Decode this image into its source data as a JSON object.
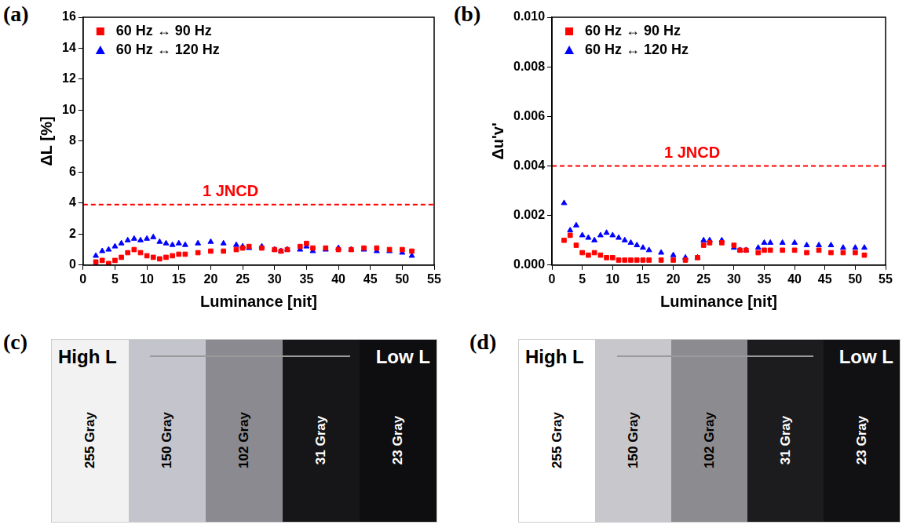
{
  "chart_data": [
    {
      "panel": "(a)",
      "type": "scatter",
      "x_label": "Luminance [nit]",
      "y_label": "ΔL [%]",
      "x": [
        2,
        3,
        4,
        5,
        6,
        7,
        8,
        9,
        10,
        11,
        12,
        13,
        14,
        15,
        16,
        18,
        20,
        22,
        24,
        25,
        26,
        28,
        30,
        31,
        32,
        34,
        35,
        36,
        38,
        40,
        42,
        44,
        46,
        48,
        50,
        51.5
      ],
      "series": [
        {
          "name": "60 Hz ↔ 90 Hz",
          "color": "#ff0000",
          "marker": "square",
          "values": [
            0.2,
            0.3,
            0.1,
            0.3,
            0.5,
            0.8,
            1.0,
            0.8,
            0.6,
            0.5,
            0.4,
            0.5,
            0.6,
            0.7,
            0.7,
            0.8,
            0.9,
            0.9,
            1.0,
            1.1,
            1.2,
            1.1,
            1.0,
            0.9,
            1.0,
            1.2,
            1.4,
            1.1,
            1.1,
            1.0,
            1.0,
            1.1,
            1.1,
            1.0,
            1.0,
            0.9
          ]
        },
        {
          "name": "60 Hz ↔ 120 Hz",
          "color": "#0000ff",
          "marker": "triangle",
          "values": [
            0.6,
            0.9,
            1.0,
            1.2,
            1.4,
            1.6,
            1.7,
            1.6,
            1.7,
            1.8,
            1.5,
            1.4,
            1.3,
            1.4,
            1.3,
            1.4,
            1.5,
            1.4,
            1.3,
            1.2,
            1.1,
            1.2,
            1.0,
            0.9,
            1.0,
            1.0,
            1.2,
            0.9,
            1.0,
            1.1,
            1.0,
            1.0,
            0.9,
            0.9,
            0.8,
            0.6
          ]
        }
      ],
      "xlim": [
        0,
        55
      ],
      "xticks": [
        0,
        5,
        10,
        15,
        20,
        25,
        30,
        35,
        40,
        45,
        50,
        55
      ],
      "ylim": [
        0,
        16
      ],
      "yticks": [
        0,
        2,
        4,
        6,
        8,
        10,
        12,
        14,
        16
      ],
      "grid": false,
      "legend": "upper left",
      "annotations": [
        {
          "y": 3.9,
          "text": "1 JNCD",
          "color": "#ff0000",
          "line_style": "dashed"
        }
      ]
    },
    {
      "panel": "(b)",
      "type": "scatter",
      "x_label": "Luminance [nit]",
      "y_label": "Δu'v'",
      "x": [
        2,
        3,
        4,
        5,
        6,
        7,
        8,
        9,
        10,
        11,
        12,
        13,
        14,
        15,
        16,
        18,
        20,
        22,
        24,
        25,
        26,
        28,
        30,
        31,
        32,
        34,
        35,
        36,
        38,
        40,
        42,
        44,
        46,
        48,
        50,
        51.5
      ],
      "series": [
        {
          "name": "60 Hz ↔ 90 Hz",
          "color": "#ff0000",
          "marker": "square",
          "values": [
            0.001,
            0.0012,
            0.0008,
            0.0005,
            0.0004,
            0.0005,
            0.0004,
            0.0003,
            0.0003,
            0.0002,
            0.0002,
            0.0002,
            0.0002,
            0.0002,
            0.0002,
            0.0002,
            0.0002,
            0.0002,
            0.0003,
            0.0008,
            0.0009,
            0.0009,
            0.0008,
            0.0006,
            0.0006,
            0.0005,
            0.0006,
            0.0006,
            0.0006,
            0.0006,
            0.0005,
            0.0006,
            0.0005,
            0.0005,
            0.0005,
            0.0004
          ]
        },
        {
          "name": "60 Hz ↔ 120 Hz",
          "color": "#0000ff",
          "marker": "triangle",
          "values": [
            0.0025,
            0.0014,
            0.0016,
            0.0012,
            0.0011,
            0.001,
            0.0012,
            0.0013,
            0.0012,
            0.0011,
            0.001,
            0.0009,
            0.0008,
            0.0007,
            0.0006,
            0.0005,
            0.0004,
            0.0003,
            0.0003,
            0.001,
            0.001,
            0.001,
            0.0007,
            0.0006,
            0.0006,
            0.0007,
            0.0009,
            0.0009,
            0.0009,
            0.0009,
            0.0008,
            0.0008,
            0.0008,
            0.0007,
            0.0007,
            0.0007
          ]
        }
      ],
      "xlim": [
        0,
        55
      ],
      "xticks": [
        0,
        5,
        10,
        15,
        20,
        25,
        30,
        35,
        40,
        45,
        50,
        55
      ],
      "ylim": [
        0,
        0.01
      ],
      "yticks": [
        {
          "value": 0,
          "label": "0.000"
        },
        {
          "value": 0.002,
          "label": "0.002"
        },
        {
          "value": 0.004,
          "label": "0.004"
        },
        {
          "value": 0.006,
          "label": "0.006"
        },
        {
          "value": 0.008,
          "label": "0.008"
        },
        {
          "value": 0.01,
          "label": "0.010"
        }
      ],
      "grid": false,
      "legend": "upper left",
      "annotations": [
        {
          "y": 0.004,
          "text": "1 JNCD",
          "color": "#ff0000",
          "line_style": "dashed"
        }
      ]
    }
  ],
  "photos": [
    {
      "panel": "(c)",
      "left_text": "High L",
      "right_text": "Low L",
      "strips": [
        {
          "label": "255 Gray",
          "color": "#f2f2f2"
        },
        {
          "label": "150 Gray",
          "color": "#c4c4cc"
        },
        {
          "label": "102 Gray",
          "color": "#8a8a90"
        },
        {
          "label": "31 Gray",
          "color": "#161618"
        },
        {
          "label": "23 Gray",
          "color": "#0e0e10"
        }
      ]
    },
    {
      "panel": "(d)",
      "left_text": "High L",
      "right_text": "Low L",
      "strips": [
        {
          "label": "255 Gray",
          "color": "#ffffff"
        },
        {
          "label": "150 Gray",
          "color": "#c8c8cc"
        },
        {
          "label": "102 Gray",
          "color": "#8c8c90"
        },
        {
          "label": "31 Gray",
          "color": "#1c1c1e"
        },
        {
          "label": "23 Gray",
          "color": "#111113"
        }
      ]
    }
  ]
}
